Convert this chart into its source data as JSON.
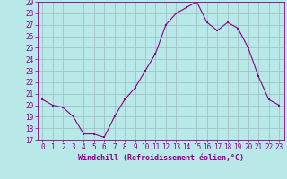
{
  "x": [
    0,
    1,
    2,
    3,
    4,
    5,
    6,
    7,
    8,
    9,
    10,
    11,
    12,
    13,
    14,
    15,
    16,
    17,
    18,
    19,
    20,
    21,
    22,
    23
  ],
  "y": [
    20.5,
    20.0,
    19.8,
    19.0,
    17.5,
    17.5,
    17.2,
    19.0,
    20.5,
    21.5,
    23.0,
    24.5,
    27.0,
    28.0,
    28.5,
    29.0,
    27.2,
    26.5,
    27.2,
    26.7,
    25.0,
    22.5,
    20.5,
    20.0
  ],
  "ylim": [
    17,
    29
  ],
  "yticks": [
    17,
    18,
    19,
    20,
    21,
    22,
    23,
    24,
    25,
    26,
    27,
    28,
    29
  ],
  "xticks": [
    0,
    1,
    2,
    3,
    4,
    5,
    6,
    7,
    8,
    9,
    10,
    11,
    12,
    13,
    14,
    15,
    16,
    17,
    18,
    19,
    20,
    21,
    22,
    23
  ],
  "xlabel": "Windchill (Refroidissement éolien,°C)",
  "line_color": "#880088",
  "marker": "s",
  "marker_size": 2.0,
  "bg_color": "#b8e8e8",
  "grid_color": "#99bbbb",
  "label_fontsize": 6.0,
  "tick_fontsize": 5.5
}
